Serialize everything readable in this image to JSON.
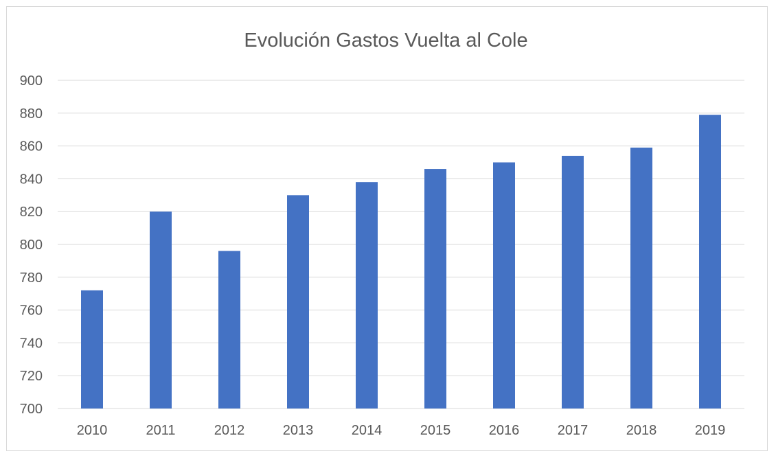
{
  "chart_data": {
    "type": "bar",
    "title": "Evolución Gastos Vuelta al Cole",
    "xlabel": "",
    "ylabel": "",
    "categories": [
      "2010",
      "2011",
      "2012",
      "2013",
      "2014",
      "2015",
      "2016",
      "2017",
      "2018",
      "2019"
    ],
    "values": [
      772,
      820,
      796,
      830,
      838,
      846,
      850,
      854,
      859,
      879
    ],
    "ylim": [
      700,
      900
    ],
    "yticks": [
      700,
      720,
      740,
      760,
      780,
      800,
      820,
      840,
      860,
      880,
      900
    ],
    "grid": true,
    "legend": "none",
    "bar_color": "#4472C4"
  }
}
